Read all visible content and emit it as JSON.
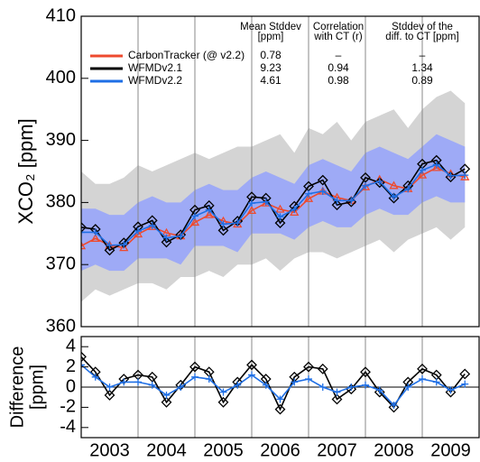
{
  "chart_data": [
    {
      "type": "line",
      "ylabel": "XCO₂ [ppm]",
      "x": [
        2003.0,
        2003.25,
        2003.5,
        2003.75,
        2004.0,
        2004.25,
        2004.5,
        2004.75,
        2005.0,
        2005.25,
        2005.5,
        2005.75,
        2006.0,
        2006.25,
        2006.5,
        2006.75,
        2007.0,
        2007.25,
        2007.5,
        2007.75,
        2008.0,
        2008.25,
        2008.5,
        2008.75,
        2009.0,
        2009.25,
        2009.5,
        2009.75
      ],
      "xlim": [
        2003,
        2010
      ],
      "ylim": [
        360,
        410
      ],
      "yticks": [
        360,
        370,
        380,
        390,
        400,
        410
      ],
      "vlines": [
        2004,
        2005,
        2006,
        2007,
        2008,
        2009
      ],
      "stat_headers": [
        [
          "Mean Stddev",
          "[ppm]"
        ],
        [
          "Correlation",
          "with CT (r)"
        ],
        [
          "Stddev of the",
          "diff. to CT [ppm]"
        ]
      ],
      "bands": [
        {
          "color": "#d4d4d4",
          "upper": [
            385,
            383,
            383,
            384,
            386,
            385,
            386,
            387,
            388,
            387,
            388,
            389,
            389,
            390,
            391,
            388,
            392,
            391,
            393,
            390,
            393,
            394,
            395,
            392,
            395,
            397,
            398,
            396
          ],
          "lower": [
            364,
            366,
            365,
            366,
            367,
            367,
            366,
            368,
            368,
            369,
            368,
            370,
            370,
            371,
            369,
            371,
            372,
            372,
            371,
            372,
            373,
            374,
            372,
            374,
            375,
            376,
            374,
            376
          ]
        },
        {
          "color": "#9eaaf6",
          "upper": [
            379,
            379,
            378,
            378,
            380,
            381,
            380,
            380,
            382,
            383,
            382,
            382,
            384,
            385,
            384,
            383,
            386,
            387,
            386,
            385,
            388,
            389,
            388,
            387,
            389,
            391,
            390,
            389
          ],
          "lower": [
            369,
            370,
            369,
            369,
            371,
            371,
            371,
            370,
            373,
            373,
            373,
            372,
            375,
            375,
            375,
            374,
            376,
            377,
            376,
            376,
            378,
            379,
            378,
            378,
            380,
            381,
            380,
            380
          ]
        }
      ],
      "series": [
        {
          "name": "CarbonTracker (@ v2.2)",
          "color": "#ee4a2e",
          "marker": "triangle",
          "stats": [
            0.78,
            "–",
            "–"
          ],
          "values": [
            373.0,
            374.2,
            373.1,
            372.7,
            374.9,
            376.1,
            375.1,
            374.6,
            376.8,
            378.0,
            377.0,
            376.5,
            378.7,
            379.9,
            378.9,
            378.4,
            380.6,
            381.8,
            380.8,
            380.3,
            382.5,
            383.7,
            382.7,
            382.2,
            384.4,
            385.6,
            384.6,
            384.1
          ]
        },
        {
          "name": "WFMDv2.1",
          "color": "#000000",
          "marker": "diamond",
          "stats": [
            9.23,
            0.94,
            1.34
          ],
          "values": [
            376.0,
            375.7,
            372.3,
            373.5,
            376.1,
            377.1,
            373.6,
            374.8,
            378.8,
            379.5,
            375.5,
            377.0,
            380.9,
            380.7,
            376.7,
            379.4,
            382.6,
            383.6,
            379.6,
            380.1,
            384.0,
            383.2,
            380.7,
            382.7,
            386.2,
            386.8,
            384.1,
            385.4
          ]
        },
        {
          "name": "WFMDv2.2",
          "color": "#1f6fe5",
          "marker": "plus",
          "stats": [
            4.61,
            0.98,
            0.89
          ],
          "values": [
            375.2,
            375.2,
            373.1,
            373.2,
            375.4,
            376.3,
            374.3,
            374.6,
            377.8,
            378.8,
            376.5,
            376.7,
            379.9,
            380.1,
            377.7,
            378.9,
            381.4,
            381.8,
            380.3,
            380.3,
            382.7,
            383.4,
            380.9,
            382.2,
            385.2,
            386.1,
            384.3,
            384.4
          ]
        }
      ]
    },
    {
      "type": "line",
      "ylabel": [
        "Difference",
        "[ppm]"
      ],
      "x": [
        2003.0,
        2003.25,
        2003.5,
        2003.75,
        2004.0,
        2004.25,
        2004.5,
        2004.75,
        2005.0,
        2005.25,
        2005.5,
        2005.75,
        2006.0,
        2006.25,
        2006.5,
        2006.75,
        2007.0,
        2007.25,
        2007.5,
        2007.75,
        2008.0,
        2008.25,
        2008.5,
        2008.75,
        2009.0,
        2009.25,
        2009.5,
        2009.75
      ],
      "xlim": [
        2003,
        2010
      ],
      "ylim": [
        -5,
        5
      ],
      "yticks": [
        -4,
        -2,
        0,
        2,
        4
      ],
      "zero_line": true,
      "vlines": [
        2004,
        2005,
        2006,
        2007,
        2008,
        2009
      ],
      "xticks": [
        {
          "value": 2003.5,
          "label": "2003"
        },
        {
          "value": 2004.5,
          "label": "2004"
        },
        {
          "value": 2005.5,
          "label": "2005"
        },
        {
          "value": 2006.5,
          "label": "2006"
        },
        {
          "value": 2007.5,
          "label": "2007"
        },
        {
          "value": 2008.5,
          "label": "2008"
        },
        {
          "value": 2009.5,
          "label": "2009"
        }
      ],
      "series": [
        {
          "color": "#000000",
          "marker": "diamond",
          "values": [
            3.0,
            1.5,
            -0.8,
            0.8,
            1.2,
            1.0,
            -1.5,
            0.2,
            2.0,
            1.5,
            -1.5,
            0.5,
            2.2,
            0.8,
            -2.2,
            1.0,
            2.0,
            1.8,
            -1.2,
            -0.2,
            1.5,
            -0.5,
            -2.0,
            0.5,
            1.8,
            1.2,
            -0.5,
            1.3
          ]
        },
        {
          "color": "#1f6fe5",
          "marker": "plus",
          "values": [
            2.2,
            1.0,
            0.0,
            0.5,
            0.5,
            0.2,
            -0.8,
            0.0,
            1.0,
            0.8,
            -0.5,
            0.2,
            1.2,
            0.2,
            -1.2,
            0.5,
            0.8,
            0.0,
            -0.5,
            0.0,
            0.2,
            -0.3,
            -1.8,
            0.0,
            0.8,
            0.5,
            -0.3,
            0.3
          ]
        }
      ]
    }
  ]
}
